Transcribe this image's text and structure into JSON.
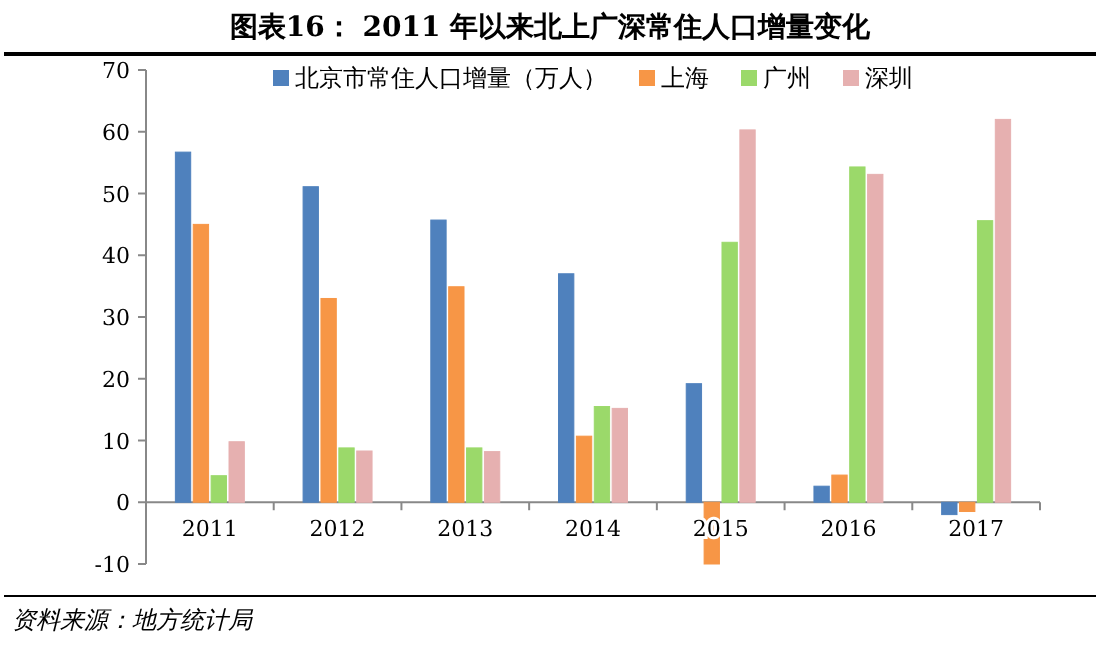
{
  "chart_data": {
    "type": "bar",
    "title": "图表16：    2011 年以来北上广深常住人口增量变化",
    "categories": [
      "2011",
      "2012",
      "2013",
      "2014",
      "2015",
      "2016",
      "2017"
    ],
    "series": [
      {
        "name": "北京市常住人口增量（万人）",
        "color": "#4f81bd",
        "values": [
          56.7,
          51.1,
          45.7,
          37.0,
          19.2,
          2.6,
          -2
        ]
      },
      {
        "name": "上海",
        "color": "#f79646",
        "values": [
          45.0,
          33.0,
          34.9,
          10.7,
          -10,
          4.4,
          -1.5
        ]
      },
      {
        "name": "广州",
        "color": "#9bd96a",
        "values": [
          4.3,
          8.8,
          8.8,
          15.5,
          42.1,
          54.3,
          45.6
        ]
      },
      {
        "name": "深圳",
        "color": "#e6b0b0",
        "values": [
          9.8,
          8.3,
          8.2,
          15.2,
          60.3,
          53.1,
          62.0
        ]
      }
    ],
    "ylim": [
      -10,
      70
    ],
    "yticks": [
      -10,
      0,
      10,
      20,
      30,
      40,
      50,
      60,
      70
    ],
    "grid": false,
    "legend": "top",
    "annotations": [
      "资料来源：地方统计局"
    ]
  }
}
